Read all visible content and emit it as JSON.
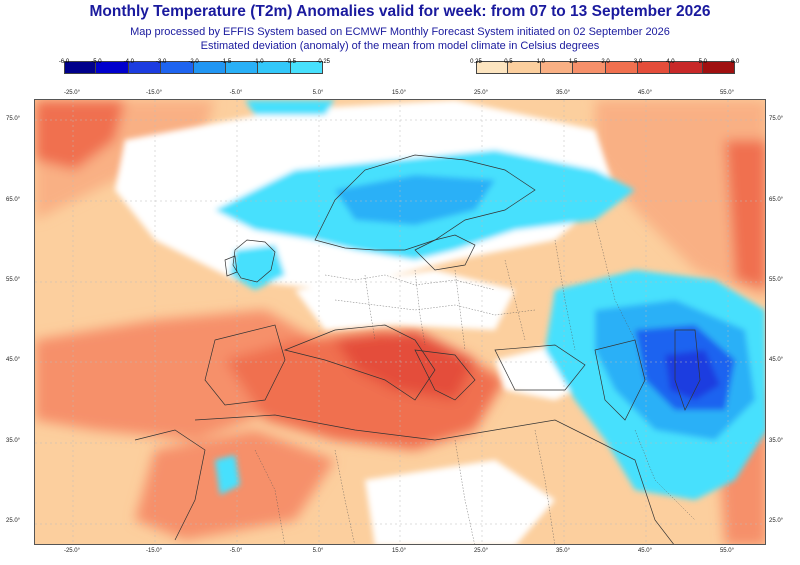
{
  "title": "Monthly Temperature (T2m) Anomalies valid for week: from 07 to 13 September 2026",
  "subtitle_line1": "Map processed by EFFIS System based on ECMWF Monthly Forecast System initiated on 02 September 2026",
  "subtitle_line2": "Estimated deviation (anomaly) of the mean from model climate in Celsius degrees",
  "legend": {
    "negative": {
      "ticks": [
        "-6.0",
        "-5.0",
        "-4.0",
        "-3.0",
        "-2.0",
        "-1.5",
        "-1.0",
        "-0.5",
        "-0.25"
      ],
      "colors": [
        "#00008b",
        "#0000cd",
        "#1c3ce0",
        "#1e64f0",
        "#2196f3",
        "#29b0f7",
        "#33c8fa",
        "#47e0fd"
      ]
    },
    "positive": {
      "ticks": [
        "0.25",
        "0.5",
        "1.0",
        "1.5",
        "2.0",
        "3.0",
        "4.0",
        "5.0",
        "6.0"
      ],
      "colors": [
        "#fde5c0",
        "#fccf9e",
        "#f9b084",
        "#f6906a",
        "#f0704f",
        "#e44d3a",
        "#c82828",
        "#a01010"
      ]
    }
  },
  "axes": {
    "lat_labels": [
      "75.0°",
      "65.0°",
      "55.0°",
      "45.0°",
      "35.0°",
      "25.0°"
    ],
    "lon_labels": [
      "-25.0°",
      "-15.0°",
      "-5.0°",
      "5.0°",
      "15.0°",
      "25.0°",
      "35.0°",
      "45.0°",
      "55.0°"
    ]
  },
  "colors": {
    "title": "#1a1a9e",
    "anomaly_warm_1": "#fccf9e",
    "anomaly_warm_2": "#f9b084",
    "anomaly_warm_3": "#f6906a",
    "anomaly_warm_4": "#f0704f",
    "anomaly_cool_1": "#47e0fd",
    "anomaly_cool_2": "#29b0f7",
    "anomaly_cool_3": "#1e64f0",
    "anomaly_cool_4": "#1c3ce0"
  }
}
